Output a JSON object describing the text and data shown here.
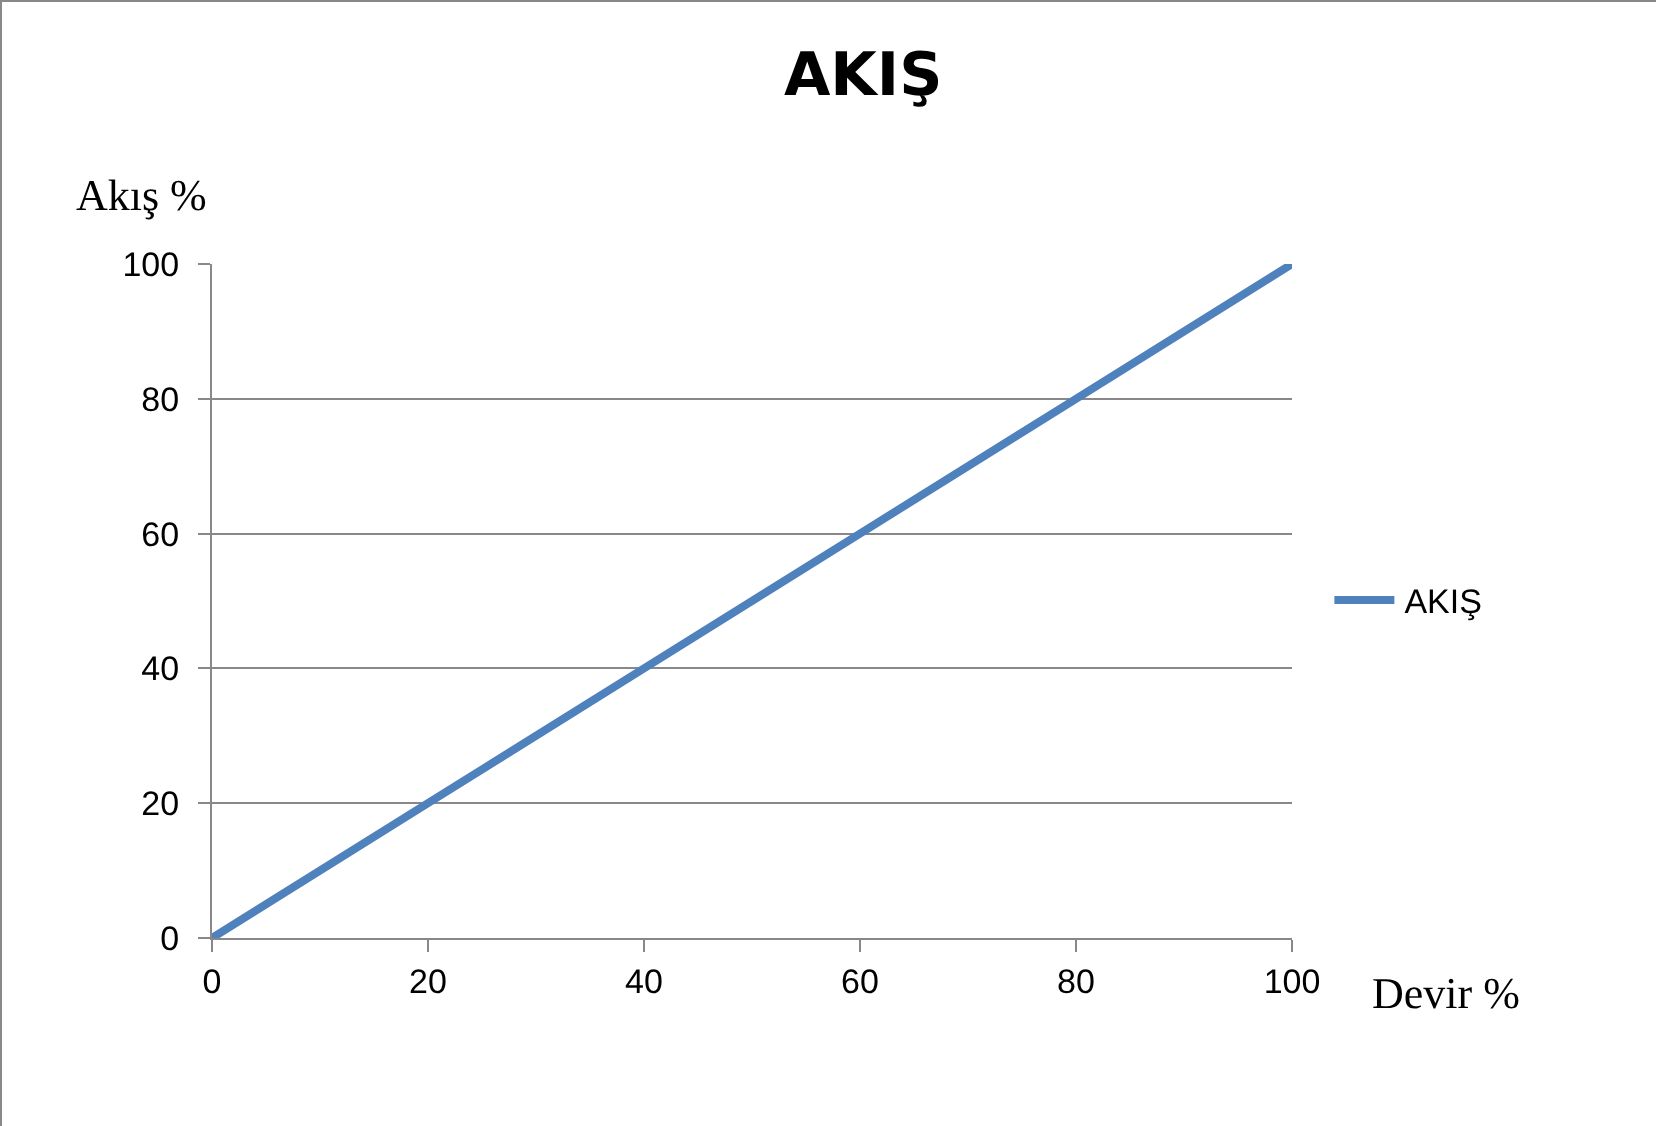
{
  "chart_data": {
    "type": "line",
    "title": "AKIŞ",
    "xlabel": "Devir %",
    "ylabel": "Akış %",
    "x": [
      0,
      20,
      40,
      60,
      80,
      100
    ],
    "series": [
      {
        "name": "AKIŞ",
        "color": "#4f81bd",
        "values": [
          0,
          20,
          40,
          60,
          80,
          100
        ]
      }
    ],
    "xlim": [
      0,
      100
    ],
    "xticks": [
      0,
      20,
      40,
      60,
      80,
      100
    ],
    "ylim": [
      0,
      100
    ],
    "yticks": [
      0,
      20,
      40,
      60,
      80,
      100
    ],
    "grid": "y",
    "legend": "right",
    "marker": "none",
    "line_style": "solid"
  }
}
